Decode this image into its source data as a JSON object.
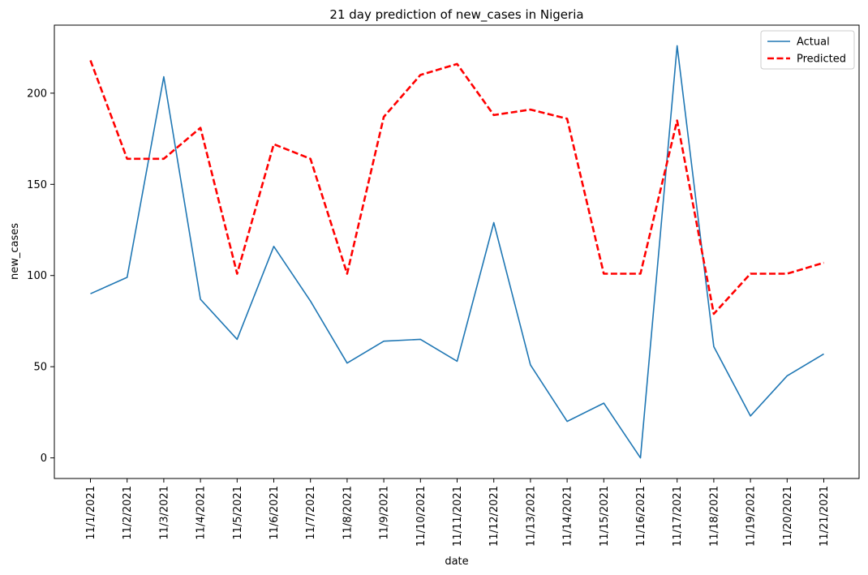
{
  "chart_data": {
    "type": "line",
    "title": "21 day prediction of new_cases in Nigeria",
    "xlabel": "date",
    "ylabel": "new_cases",
    "categories": [
      "11/1/2021",
      "11/2/2021",
      "11/3/2021",
      "11/4/2021",
      "11/5/2021",
      "11/6/2021",
      "11/7/2021",
      "11/8/2021",
      "11/9/2021",
      "11/10/2021",
      "11/11/2021",
      "11/12/2021",
      "11/13/2021",
      "11/14/2021",
      "11/15/2021",
      "11/16/2021",
      "11/17/2021",
      "11/18/2021",
      "11/19/2021",
      "11/20/2021",
      "11/21/2021"
    ],
    "y_ticks": [
      0,
      50,
      100,
      150,
      200
    ],
    "ylim": [
      -11.3,
      237.3
    ],
    "grid": false,
    "legend_position": "top-right",
    "series": [
      {
        "name": "Actual",
        "color": "#1f77b4",
        "style": "solid",
        "values": [
          90,
          99,
          209,
          87,
          65,
          116,
          86,
          52,
          64,
          65,
          53,
          129,
          51,
          20,
          30,
          0,
          226,
          61,
          23,
          45,
          57
        ]
      },
      {
        "name": "Predicted",
        "color": "#ff0000",
        "style": "dashed",
        "values": [
          218,
          164,
          164,
          181,
          101,
          172,
          164,
          101,
          187,
          210,
          216,
          188,
          191,
          186,
          101,
          101,
          185,
          79,
          101,
          101,
          107
        ]
      }
    ]
  }
}
